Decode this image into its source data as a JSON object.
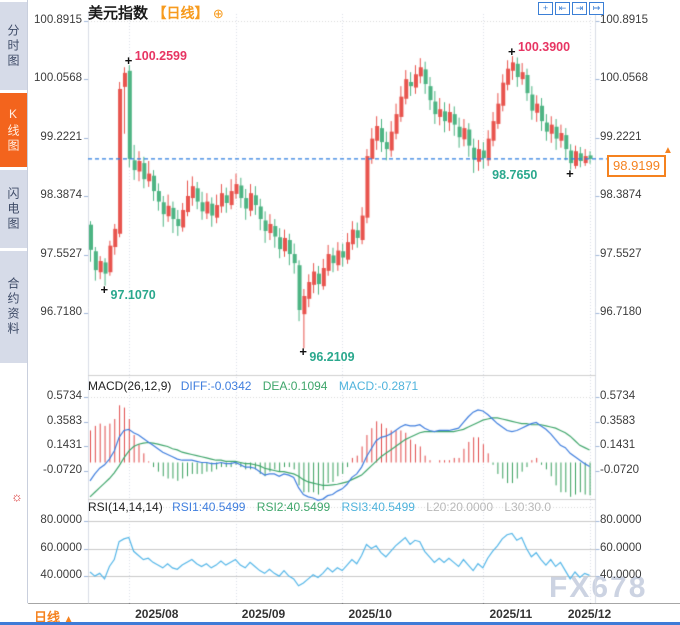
{
  "header": {
    "title": "美元指数",
    "period_tag": "【日线】",
    "plus_icon_glyph": "⊕",
    "toolbar": [
      {
        "name": "crosshair-icon",
        "glyph": "+"
      },
      {
        "name": "scale-left-icon",
        "glyph": "⇤"
      },
      {
        "name": "scale-right-icon",
        "glyph": "⇥"
      },
      {
        "name": "pan-right-icon",
        "glyph": "↦"
      }
    ]
  },
  "sidebar": {
    "tabs": [
      {
        "label": "分时图",
        "selected": false
      },
      {
        "label": "K线图",
        "selected": true
      },
      {
        "label": "闪电图",
        "selected": false
      },
      {
        "label": "合约资料",
        "selected": false
      }
    ],
    "settings_icon_glyph": "☼"
  },
  "bottom_bar": {
    "period_label": "日线",
    "arrow": "▲"
  },
  "watermark": "FX678",
  "colors": {
    "candle_up": "#e8544e",
    "candle_down": "#4db483",
    "hist_up": "#e14b4b",
    "hist_down": "#3aa05f",
    "diff_line": "#3f7ede",
    "dea_line": "#3fa66b",
    "rsi_line": "#54b6e8",
    "dashed_price_line": "#2b7de0",
    "accent_orange": "#f5821f",
    "high_marker": "#e73563",
    "low_marker": "#2aa88d",
    "tab_selected": "#f3641d",
    "tab_bg": "#d6dbe8"
  },
  "chart_data": [
    {
      "type": "candlestick",
      "title": "美元指数 日线",
      "y_ticks": [
        "100.8915",
        "100.0568",
        "99.2221",
        "98.3874",
        "97.5527",
        "96.7180"
      ],
      "x_months": [
        {
          "label": "2025/08",
          "index": 8
        },
        {
          "label": "2025/09",
          "index": 30
        },
        {
          "label": "2025/10",
          "index": 52
        },
        {
          "label": "2025/11",
          "index": 81
        },
        {
          "label": "2025/12",
          "index": 103
        }
      ],
      "current_price": 98.9199,
      "current_price_label": "98.9199",
      "annotations": [
        {
          "text": "100.2599",
          "kind": "high",
          "index": 8,
          "price": 100.2599
        },
        {
          "text": "100.3900",
          "kind": "high",
          "index": 87,
          "price": 100.39
        },
        {
          "text": "97.1070",
          "kind": "low",
          "index": 3,
          "price": 97.107
        },
        {
          "text": "96.2109",
          "kind": "low",
          "index": 44,
          "price": 96.2109
        },
        {
          "text": "98.7650",
          "kind": "low",
          "index": 99,
          "price": 98.765
        }
      ],
      "ohlc": [
        [
          97.98,
          98.03,
          97.45,
          97.62
        ],
        [
          97.6,
          97.66,
          97.18,
          97.33
        ],
        [
          97.3,
          97.53,
          97.2,
          97.46
        ],
        [
          97.44,
          97.5,
          97.107,
          97.28
        ],
        [
          97.3,
          97.75,
          97.25,
          97.68
        ],
        [
          97.66,
          97.99,
          97.55,
          97.92
        ],
        [
          97.85,
          100.02,
          97.8,
          99.92
        ],
        [
          99.95,
          100.23,
          99.28,
          100.15
        ],
        [
          100.18,
          100.2599,
          98.8,
          98.92
        ],
        [
          98.9,
          99.12,
          98.62,
          98.76
        ],
        [
          98.74,
          99.03,
          98.6,
          98.89
        ],
        [
          98.86,
          98.95,
          98.5,
          98.63
        ],
        [
          98.6,
          98.89,
          98.52,
          98.71
        ],
        [
          98.68,
          98.76,
          98.32,
          98.46
        ],
        [
          98.46,
          98.57,
          98.18,
          98.31
        ],
        [
          98.3,
          98.39,
          97.95,
          98.13
        ],
        [
          98.1,
          98.41,
          98.02,
          98.25
        ],
        [
          98.22,
          98.31,
          97.86,
          98.06
        ],
        [
          98.06,
          98.19,
          97.82,
          97.96
        ],
        [
          97.94,
          98.29,
          97.88,
          98.19
        ],
        [
          98.16,
          98.61,
          98.1,
          98.39
        ],
        [
          98.36,
          98.67,
          98.25,
          98.53
        ],
        [
          98.5,
          98.59,
          98.2,
          98.31
        ],
        [
          98.3,
          98.45,
          98.05,
          98.17
        ],
        [
          98.14,
          98.43,
          98.06,
          98.31
        ],
        [
          98.28,
          98.37,
          97.95,
          98.11
        ],
        [
          98.08,
          98.41,
          98.0,
          98.26
        ],
        [
          98.24,
          98.56,
          98.15,
          98.43
        ],
        [
          98.4,
          98.51,
          98.15,
          98.29
        ],
        [
          98.26,
          98.63,
          98.2,
          98.46
        ],
        [
          98.42,
          98.71,
          98.35,
          98.56
        ],
        [
          98.54,
          98.65,
          98.22,
          98.36
        ],
        [
          98.36,
          98.49,
          98.05,
          98.21
        ],
        [
          98.18,
          98.56,
          98.1,
          98.43
        ],
        [
          98.4,
          98.53,
          98.12,
          98.26
        ],
        [
          98.24,
          98.35,
          97.9,
          98.06
        ],
        [
          98.04,
          98.17,
          97.72,
          97.89
        ],
        [
          97.86,
          98.13,
          97.76,
          97.99
        ],
        [
          97.96,
          98.06,
          97.65,
          97.81
        ],
        [
          97.8,
          97.93,
          97.5,
          97.63
        ],
        [
          97.6,
          97.91,
          97.52,
          97.79
        ],
        [
          97.76,
          97.85,
          97.4,
          97.56
        ],
        [
          97.56,
          97.71,
          97.28,
          97.43
        ],
        [
          97.4,
          97.47,
          96.6,
          96.76
        ],
        [
          96.7,
          97.06,
          96.2109,
          96.96
        ],
        [
          96.92,
          97.27,
          96.8,
          97.16
        ],
        [
          97.12,
          97.43,
          97.0,
          97.31
        ],
        [
          97.28,
          97.39,
          96.98,
          97.13
        ],
        [
          97.1,
          97.49,
          97.05,
          97.36
        ],
        [
          97.32,
          97.69,
          97.25,
          97.56
        ],
        [
          97.54,
          97.65,
          97.3,
          97.43
        ],
        [
          97.4,
          97.73,
          97.32,
          97.61
        ],
        [
          97.6,
          97.71,
          97.38,
          97.51
        ],
        [
          97.48,
          97.86,
          97.42,
          97.73
        ],
        [
          97.7,
          98.03,
          97.62,
          97.91
        ],
        [
          97.9,
          98.01,
          97.65,
          97.79
        ],
        [
          97.76,
          98.23,
          97.7,
          98.11
        ],
        [
          98.08,
          99.06,
          98.0,
          98.96
        ],
        [
          98.92,
          99.36,
          98.85,
          99.21
        ],
        [
          99.18,
          99.53,
          99.05,
          99.39
        ],
        [
          99.36,
          99.49,
          99.02,
          99.16
        ],
        [
          99.16,
          99.31,
          98.9,
          99.06
        ],
        [
          99.04,
          99.46,
          98.95,
          99.31
        ],
        [
          99.28,
          99.71,
          99.2,
          99.56
        ],
        [
          99.52,
          99.96,
          99.45,
          99.81
        ],
        [
          99.78,
          100.19,
          99.7,
          100.06
        ],
        [
          100.02,
          100.16,
          99.82,
          99.96
        ],
        [
          99.94,
          100.26,
          99.85,
          100.13
        ],
        [
          100.1,
          100.36,
          100.0,
          100.23
        ],
        [
          100.2,
          100.31,
          99.85,
          99.99
        ],
        [
          99.96,
          100.09,
          99.62,
          99.76
        ],
        [
          99.74,
          99.89,
          99.42,
          99.56
        ],
        [
          99.52,
          99.79,
          99.4,
          99.63
        ],
        [
          99.6,
          99.73,
          99.3,
          99.46
        ],
        [
          99.44,
          99.71,
          99.32,
          99.59
        ],
        [
          99.56,
          99.67,
          99.25,
          99.41
        ],
        [
          99.38,
          99.51,
          99.08,
          99.23
        ],
        [
          99.2,
          99.49,
          99.1,
          99.36
        ],
        [
          99.34,
          99.43,
          98.95,
          99.11
        ],
        [
          99.08,
          99.21,
          98.72,
          98.91
        ],
        [
          98.88,
          99.19,
          98.75,
          99.06
        ],
        [
          99.04,
          99.16,
          98.78,
          98.93
        ],
        [
          98.9,
          99.33,
          98.82,
          99.21
        ],
        [
          99.18,
          99.59,
          99.1,
          99.46
        ],
        [
          99.42,
          99.86,
          99.35,
          99.71
        ],
        [
          99.68,
          100.13,
          99.6,
          100.01
        ],
        [
          99.98,
          100.33,
          99.9,
          100.21
        ],
        [
          100.18,
          100.39,
          100.05,
          100.3
        ],
        [
          100.28,
          100.37,
          99.95,
          100.09
        ],
        [
          100.06,
          100.29,
          99.98,
          100.16
        ],
        [
          100.12,
          100.21,
          99.75,
          99.86
        ],
        [
          99.84,
          99.96,
          99.48,
          99.61
        ],
        [
          99.58,
          99.83,
          99.45,
          99.71
        ],
        [
          99.68,
          99.79,
          99.32,
          99.46
        ],
        [
          99.44,
          99.56,
          99.18,
          99.31
        ],
        [
          99.28,
          99.53,
          99.15,
          99.41
        ],
        [
          99.38,
          99.49,
          99.05,
          99.21
        ],
        [
          99.18,
          99.41,
          99.08,
          99.29
        ],
        [
          99.26,
          99.36,
          98.9,
          99.06
        ],
        [
          99.04,
          99.13,
          98.765,
          98.86
        ],
        [
          98.82,
          99.11,
          98.78,
          99.03
        ],
        [
          99.0,
          99.09,
          98.8,
          98.89
        ],
        [
          98.86,
          99.06,
          98.82,
          98.96
        ],
        [
          98.97,
          99.03,
          98.85,
          98.9199
        ]
      ]
    },
    {
      "type": "macd",
      "legend": {
        "name": "MACD(26,12,9)",
        "diff": "DIFF:-0.0342",
        "dea": "DEA:0.1094",
        "macd": "MACD:-0.2871"
      },
      "y_ticks": [
        "0.5734",
        "0.3583",
        "0.1431",
        "-0.0720"
      ],
      "last": {
        "diff": -0.0342,
        "dea": 0.1094,
        "macd": -0.2871
      },
      "diff": [
        -0.16,
        -0.1,
        -0.05,
        -0.02,
        0.03,
        0.1,
        0.22,
        0.28,
        0.29,
        0.26,
        0.24,
        0.21,
        0.18,
        0.15,
        0.12,
        0.09,
        0.07,
        0.05,
        0.03,
        0.02,
        0.02,
        0.02,
        0.01,
        0.0,
        0.0,
        -0.01,
        -0.01,
        0.0,
        -0.01,
        -0.01,
        0.0,
        -0.02,
        -0.04,
        -0.04,
        -0.05,
        -0.08,
        -0.11,
        -0.1,
        -0.1,
        -0.12,
        -0.1,
        -0.11,
        -0.13,
        -0.22,
        -0.28,
        -0.3,
        -0.31,
        -0.33,
        -0.32,
        -0.29,
        -0.28,
        -0.25,
        -0.23,
        -0.19,
        -0.13,
        -0.1,
        -0.04,
        0.05,
        0.12,
        0.19,
        0.22,
        0.23,
        0.25,
        0.28,
        0.31,
        0.33,
        0.32,
        0.32,
        0.33,
        0.3,
        0.28,
        0.27,
        0.28,
        0.28,
        0.28,
        0.29,
        0.3,
        0.35,
        0.4,
        0.44,
        0.46,
        0.45,
        0.42,
        0.38,
        0.34,
        0.31,
        0.28,
        0.27,
        0.28,
        0.3,
        0.32,
        0.34,
        0.35,
        0.32,
        0.29,
        0.25,
        0.2,
        0.15,
        0.13,
        0.08,
        0.05,
        0.02,
        -0.01,
        -0.0342
      ],
      "dea": [
        -0.3,
        -0.26,
        -0.22,
        -0.18,
        -0.14,
        -0.09,
        -0.03,
        0.04,
        0.1,
        0.14,
        0.16,
        0.17,
        0.175,
        0.17,
        0.16,
        0.15,
        0.14,
        0.12,
        0.11,
        0.09,
        0.08,
        0.07,
        0.06,
        0.05,
        0.04,
        0.03,
        0.02,
        0.02,
        0.01,
        0.01,
        0.01,
        0.0,
        -0.01,
        -0.01,
        -0.02,
        -0.03,
        -0.05,
        -0.06,
        -0.07,
        -0.08,
        -0.08,
        -0.09,
        -0.1,
        -0.12,
        -0.15,
        -0.17,
        -0.18,
        -0.19,
        -0.2,
        -0.2,
        -0.195,
        -0.19,
        -0.18,
        -0.17,
        -0.15,
        -0.13,
        -0.11,
        -0.07,
        -0.03,
        0.01,
        0.05,
        0.08,
        0.11,
        0.14,
        0.17,
        0.2,
        0.22,
        0.24,
        0.26,
        0.27,
        0.27,
        0.27,
        0.27,
        0.27,
        0.27,
        0.27,
        0.28,
        0.29,
        0.31,
        0.33,
        0.35,
        0.37,
        0.38,
        0.39,
        0.39,
        0.38,
        0.37,
        0.36,
        0.35,
        0.34,
        0.34,
        0.33,
        0.33,
        0.33,
        0.32,
        0.31,
        0.3,
        0.28,
        0.26,
        0.23,
        0.19,
        0.15,
        0.13,
        0.1094
      ]
    },
    {
      "type": "line",
      "legend": {
        "name": "RSI(14,14,14)",
        "rsi1": "RSI1:40.5499",
        "rsi2": "RSI2:40.5499",
        "rsi3": "RSI3:40.5499",
        "l20": "L20:20.0000",
        "l30": "L30:30.0"
      },
      "y_ticks": [
        "80.0000",
        "60.0000",
        "40.0000"
      ],
      "last": {
        "rsi1": 40.5499,
        "rsi2": 40.5499,
        "rsi3": 40.5499,
        "l20": 20.0,
        "l30": 30.0
      },
      "rsi": [
        43,
        40,
        42,
        38,
        47,
        52,
        65,
        67,
        68,
        58,
        55,
        52,
        53,
        50,
        48,
        46,
        49,
        46,
        45,
        48,
        50,
        52,
        49,
        47,
        49,
        46,
        48,
        51,
        48,
        50,
        52,
        48,
        46,
        50,
        47,
        44,
        42,
        45,
        42,
        40,
        44,
        40,
        38,
        33,
        35,
        38,
        41,
        39,
        42,
        46,
        43,
        46,
        44,
        48,
        52,
        49,
        55,
        63,
        60,
        62,
        57,
        54,
        58,
        62,
        65,
        68,
        63,
        66,
        65,
        58,
        54,
        50,
        53,
        50,
        53,
        50,
        47,
        52,
        48,
        44,
        49,
        46,
        53,
        58,
        62,
        67,
        70,
        71,
        66,
        68,
        60,
        54,
        57,
        52,
        48,
        52,
        47,
        50,
        44,
        38,
        43,
        39,
        42,
        40.55
      ]
    }
  ]
}
